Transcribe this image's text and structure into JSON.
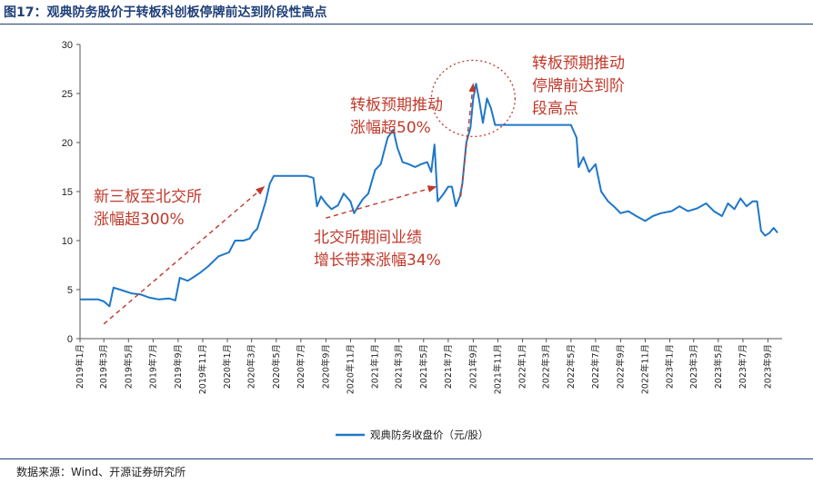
{
  "figure": {
    "title": "图17：观典防务股价于转板科创板停牌前达到阶段性高点",
    "source": "数据来源：Wind、开源证券研究所"
  },
  "colors": {
    "series": "#1f77c8",
    "annotation": "#c0392b",
    "title": "#1f3f7a"
  },
  "chart_data": {
    "type": "line",
    "ylim": [
      0,
      30
    ],
    "yticks": [
      0,
      5,
      10,
      15,
      20,
      25,
      30
    ],
    "x_range": [
      "2019-01",
      "2023-09"
    ],
    "x_tick_labels": [
      "2019年1月",
      "2019年3月",
      "2019年5月",
      "2019年7月",
      "2019年9月",
      "2019年11月",
      "2020年1月",
      "2020年3月",
      "2020年5月",
      "2020年7月",
      "2020年9月",
      "2020年11月",
      "2021年1月",
      "2021年3月",
      "2021年5月",
      "2021年7月",
      "2021年9月",
      "2021年11月",
      "2022年1月",
      "2022年3月",
      "2022年5月",
      "2022年7月",
      "2022年9月",
      "2022年11月",
      "2023年1月",
      "2023年3月",
      "2023年5月",
      "2023年7月",
      "2023年9月"
    ],
    "legend": {
      "entries": [
        "观典防务收盘价（元/股）"
      ],
      "position": "bottom"
    },
    "grid": false,
    "series": [
      {
        "name": "观典防务收盘价（元/股）",
        "x": [
          "2019-01-02",
          "2019-02-15",
          "2019-03-01",
          "2019-03-15",
          "2019-03-25",
          "2019-04-10",
          "2019-05-10",
          "2019-06-01",
          "2019-06-20",
          "2019-07-15",
          "2019-08-10",
          "2019-08-25",
          "2019-09-05",
          "2019-09-25",
          "2019-10-10",
          "2019-10-25",
          "2019-11-15",
          "2019-12-10",
          "2020-01-05",
          "2020-01-20",
          "2020-02-10",
          "2020-02-25",
          "2020-03-05",
          "2020-03-15",
          "2020-03-25",
          "2020-04-05",
          "2020-04-15",
          "2020-04-25",
          "2020-05-10",
          "2020-06-01",
          "2020-07-15",
          "2020-08-01",
          "2020-08-10",
          "2020-08-20",
          "2020-09-01",
          "2020-09-15",
          "2020-10-01",
          "2020-10-15",
          "2020-11-01",
          "2020-11-10",
          "2020-11-20",
          "2020-12-01",
          "2020-12-15",
          "2021-01-01",
          "2021-01-15",
          "2021-02-01",
          "2021-02-15",
          "2021-02-25",
          "2021-03-10",
          "2021-03-25",
          "2021-04-10",
          "2021-04-25",
          "2021-05-10",
          "2021-05-20",
          "2021-05-28",
          "2021-06-05",
          "2021-06-20",
          "2021-07-01",
          "2021-07-10",
          "2021-07-20",
          "2021-07-30",
          "2021-08-05",
          "2021-08-15",
          "2021-08-25",
          "2021-09-01",
          "2021-09-08",
          "2021-09-15",
          "2021-09-25",
          "2021-10-05",
          "2021-10-15",
          "2021-10-25",
          "2021-11-10",
          "2022-01-01",
          "2022-03-01",
          "2022-05-01",
          "2022-05-15",
          "2022-05-20",
          "2022-06-01",
          "2022-06-15",
          "2022-07-01",
          "2022-07-15",
          "2022-08-01",
          "2022-08-15",
          "2022-09-01",
          "2022-09-20",
          "2022-10-10",
          "2022-11-01",
          "2022-11-20",
          "2022-12-10",
          "2023-01-05",
          "2023-01-25",
          "2023-02-15",
          "2023-03-10",
          "2023-04-01",
          "2023-04-20",
          "2023-05-10",
          "2023-05-25",
          "2023-06-10",
          "2023-06-25",
          "2023-07-10",
          "2023-07-25",
          "2023-08-05",
          "2023-08-15",
          "2023-08-25",
          "2023-09-05",
          "2023-09-15",
          "2023-09-25"
        ],
        "y": [
          4.0,
          4.0,
          3.8,
          3.3,
          5.2,
          5.0,
          4.6,
          4.5,
          4.2,
          4.0,
          4.1,
          3.9,
          6.2,
          5.9,
          6.3,
          6.7,
          7.4,
          8.4,
          8.8,
          10.0,
          10.0,
          10.2,
          10.8,
          11.2,
          12.5,
          14.0,
          15.8,
          16.6,
          16.6,
          16.6,
          16.6,
          16.4,
          13.5,
          14.5,
          13.8,
          13.2,
          13.6,
          14.8,
          14.0,
          12.8,
          13.5,
          14.2,
          14.8,
          17.2,
          17.8,
          20.5,
          21.3,
          19.5,
          18.0,
          17.8,
          17.5,
          17.8,
          18.0,
          17.0,
          19.8,
          14.0,
          14.8,
          15.5,
          15.5,
          13.5,
          14.5,
          15.8,
          20.0,
          21.5,
          24.5,
          26.0,
          24.5,
          22.0,
          24.5,
          23.5,
          21.8,
          21.8,
          21.8,
          21.8,
          21.8,
          20.5,
          17.5,
          18.5,
          17.0,
          17.8,
          15.0,
          14.0,
          13.5,
          12.8,
          13.0,
          12.5,
          12.0,
          12.5,
          12.8,
          13.0,
          13.5,
          13.0,
          13.3,
          13.8,
          13.0,
          12.5,
          13.8,
          13.2,
          14.3,
          13.5,
          14.0,
          14.0,
          11.0,
          10.5,
          10.8,
          11.3,
          10.8
        ]
      }
    ],
    "annotations": [
      {
        "lines": [
          "新三板至北交所",
          "涨幅超300%"
        ],
        "from": [
          "2019-03",
          1.5
        ],
        "to": [
          "2020-04",
          15.5
        ]
      },
      {
        "lines": [
          "北交所期间业绩",
          "增长带来涨幅34%"
        ],
        "from": [
          "2020-09",
          12.3
        ],
        "to": [
          "2021-06",
          15.5
        ]
      },
      {
        "lines": [
          "转板预期推动",
          "涨幅超50%"
        ],
        "from": [
          "2021-08",
          14.5
        ],
        "to": [
          "2021-09",
          26.0
        ]
      },
      {
        "lines": [
          "转板预期推动",
          "停牌前达到阶",
          "段高点"
        ],
        "circle_at": [
          "2021-09",
          24.5
        ]
      }
    ]
  }
}
